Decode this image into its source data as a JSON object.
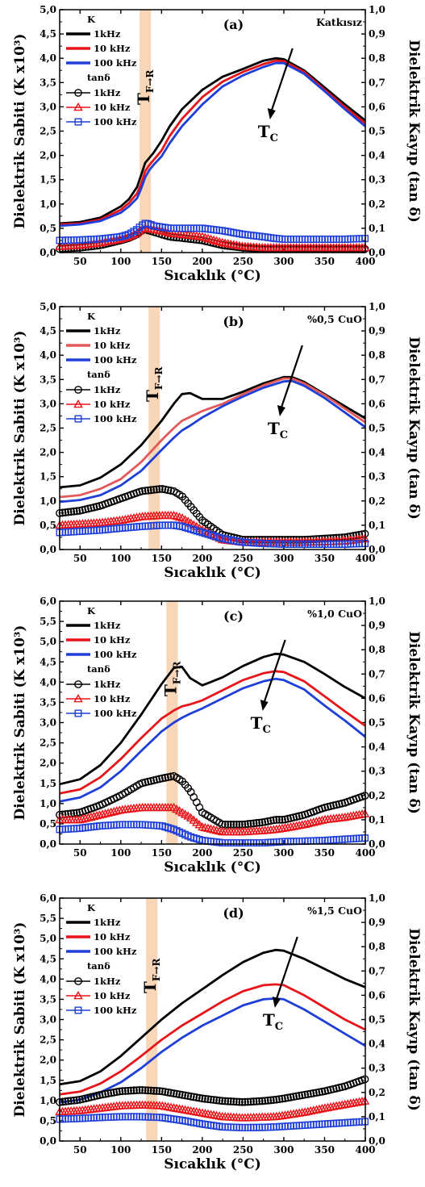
{
  "chart_data": [
    {
      "type": "line",
      "panel_label": "(a)",
      "note": "Katkısız",
      "xlabel": "Sıcaklık (°C)",
      "ylabel": "Dielektrik Sabiti (K x10³)",
      "y2label": "Dielektrik Kayıp (tan δ)",
      "xlim": [
        25,
        400
      ],
      "xticks": [
        50,
        100,
        150,
        200,
        250,
        300,
        350,
        400
      ],
      "ylim": [
        0,
        5.0
      ],
      "yticks": [
        0,
        0.5,
        1.0,
        1.5,
        2.0,
        2.5,
        3.0,
        3.5,
        4.0,
        4.5,
        5.0
      ],
      "ytick_labels": [
        "0,0",
        "0,5",
        "1,0",
        "1,5",
        "2,0",
        "2,5",
        "3,0",
        "3,5",
        "4,0",
        "4,5",
        "5,0"
      ],
      "y2lim": [
        0,
        1.0
      ],
      "y2ticks": [
        0,
        0.1,
        0.2,
        0.3,
        0.4,
        0.5,
        0.6,
        0.7,
        0.8,
        0.9,
        1.0
      ],
      "y2tick_labels": [
        "0,0",
        "0,1",
        "0,2",
        "0,3",
        "0,4",
        "0,5",
        "0,6",
        "0,7",
        "0,8",
        "0,9",
        "1,0"
      ],
      "band": [
        123,
        137
      ],
      "tfr_x": 130,
      "tc_x": 284,
      "legend_k_title": "K",
      "legend_tan_title": "tanδ",
      "x": [
        25,
        50,
        75,
        100,
        110,
        120,
        125,
        130,
        135,
        140,
        150,
        160,
        175,
        200,
        225,
        250,
        275,
        290,
        300,
        325,
        350,
        375,
        400
      ],
      "series": [
        {
          "name": "1kHz",
          "axis": "K",
          "color": "#000000",
          "values": [
            0.6,
            0.63,
            0.72,
            0.95,
            1.1,
            1.35,
            1.6,
            1.85,
            1.95,
            2.05,
            2.3,
            2.6,
            2.95,
            3.35,
            3.62,
            3.78,
            3.95,
            4.0,
            3.98,
            3.75,
            3.4,
            3.05,
            2.72
          ]
        },
        {
          "name": "10 kHz",
          "axis": "K",
          "color": "#e8141a",
          "values": [
            0.58,
            0.6,
            0.68,
            0.88,
            1.02,
            1.22,
            1.42,
            1.68,
            1.8,
            1.9,
            2.1,
            2.4,
            2.75,
            3.2,
            3.52,
            3.72,
            3.88,
            3.95,
            3.94,
            3.72,
            3.35,
            3.0,
            2.66
          ]
        },
        {
          "name": "100 kHz",
          "axis": "K",
          "color": "#1f3fd8",
          "values": [
            0.55,
            0.58,
            0.65,
            0.82,
            0.95,
            1.12,
            1.32,
            1.55,
            1.7,
            1.8,
            1.98,
            2.25,
            2.6,
            3.05,
            3.42,
            3.65,
            3.82,
            3.9,
            3.9,
            3.68,
            3.32,
            2.95,
            2.6
          ]
        },
        {
          "name": "1kHz",
          "axis": "tan",
          "color": "#000000",
          "marker": "circle",
          "values": [
            0.015,
            0.02,
            0.03,
            0.05,
            0.06,
            0.075,
            0.09,
            0.095,
            0.09,
            0.085,
            0.075,
            0.065,
            0.06,
            0.05,
            0.03,
            0.02,
            0.015,
            0.015,
            0.015,
            0.015,
            0.015,
            0.015,
            0.015
          ]
        },
        {
          "name": "10 kHz",
          "axis": "tan",
          "color": "#e8141a",
          "marker": "triangle",
          "values": [
            0.025,
            0.03,
            0.04,
            0.055,
            0.065,
            0.08,
            0.095,
            0.1,
            0.098,
            0.095,
            0.09,
            0.08,
            0.075,
            0.065,
            0.04,
            0.025,
            0.02,
            0.02,
            0.02,
            0.02,
            0.02,
            0.02,
            0.02
          ]
        },
        {
          "name": "100 kHz",
          "axis": "tan",
          "color": "#1f3fd8",
          "marker": "square",
          "values": [
            0.05,
            0.052,
            0.056,
            0.065,
            0.075,
            0.095,
            0.11,
            0.12,
            0.118,
            0.11,
            0.105,
            0.1,
            0.1,
            0.1,
            0.09,
            0.075,
            0.065,
            0.058,
            0.055,
            0.055,
            0.055,
            0.055,
            0.058
          ]
        }
      ]
    },
    {
      "type": "line",
      "panel_label": "(b)",
      "note": "%0,5 CuO",
      "xlabel": "Sıcaklık (°C)",
      "ylabel": "Dielektrik Sabiti (K x10³)",
      "y2label": "Dielektrik Kayıp (tan δ)",
      "xlim": [
        25,
        400
      ],
      "xticks": [
        50,
        100,
        150,
        200,
        250,
        300,
        350,
        400
      ],
      "ylim": [
        0,
        5.0
      ],
      "yticks": [
        0,
        0.5,
        1.0,
        1.5,
        2.0,
        2.5,
        3.0,
        3.5,
        4.0,
        4.5,
        5.0
      ],
      "ytick_labels": [
        "0,0",
        "0,5",
        "1,0",
        "1,5",
        "2,0",
        "2,5",
        "3,0",
        "3,5",
        "4,0",
        "4,5",
        "5,0"
      ],
      "y2lim": [
        0,
        1.0
      ],
      "y2ticks": [
        0,
        0.1,
        0.2,
        0.3,
        0.4,
        0.5,
        0.6,
        0.7,
        0.8,
        0.9,
        1.0
      ],
      "y2tick_labels": [
        "0,0",
        "0,1",
        "0,2",
        "0,3",
        "0,4",
        "0,5",
        "0,6",
        "0,7",
        "0,8",
        "0,9",
        "1,0"
      ],
      "band": [
        134,
        148
      ],
      "tfr_x": 141,
      "tc_x": 296,
      "legend_k_title": "K",
      "legend_tan_title": "tanδ",
      "x": [
        25,
        50,
        75,
        100,
        125,
        150,
        165,
        175,
        185,
        200,
        225,
        250,
        275,
        300,
        310,
        325,
        350,
        375,
        400
      ],
      "series": [
        {
          "name": "1kHz",
          "axis": "K",
          "color": "#000000",
          "values": [
            1.28,
            1.32,
            1.48,
            1.75,
            2.15,
            2.65,
            3.0,
            3.2,
            3.22,
            3.1,
            3.1,
            3.25,
            3.42,
            3.55,
            3.55,
            3.45,
            3.2,
            2.95,
            2.7
          ]
        },
        {
          "name": "10 kHz",
          "axis": "K",
          "color": "#e35858",
          "values": [
            1.08,
            1.12,
            1.25,
            1.45,
            1.8,
            2.25,
            2.5,
            2.65,
            2.73,
            2.85,
            3.0,
            3.2,
            3.38,
            3.52,
            3.52,
            3.42,
            3.18,
            2.9,
            2.62
          ]
        },
        {
          "name": "100 kHz",
          "axis": "K",
          "color": "#1f3fd8",
          "values": [
            0.98,
            1.02,
            1.12,
            1.32,
            1.62,
            2.05,
            2.3,
            2.45,
            2.55,
            2.72,
            2.95,
            3.15,
            3.33,
            3.46,
            3.47,
            3.37,
            3.12,
            2.82,
            2.52
          ]
        },
        {
          "name": "1kHz",
          "axis": "tan",
          "color": "#000000",
          "marker": "circle",
          "values": [
            0.15,
            0.16,
            0.18,
            0.21,
            0.24,
            0.25,
            0.24,
            0.22,
            0.18,
            0.12,
            0.06,
            0.04,
            0.04,
            0.04,
            0.04,
            0.04,
            0.045,
            0.05,
            0.065
          ]
        },
        {
          "name": "10 kHz",
          "axis": "tan",
          "color": "#e8141a",
          "marker": "triangle",
          "values": [
            0.1,
            0.105,
            0.11,
            0.12,
            0.135,
            0.14,
            0.14,
            0.13,
            0.11,
            0.08,
            0.04,
            0.03,
            0.03,
            0.03,
            0.03,
            0.03,
            0.032,
            0.035,
            0.045
          ]
        },
        {
          "name": "100 kHz",
          "axis": "tan",
          "color": "#1f3fd8",
          "marker": "square",
          "values": [
            0.07,
            0.075,
            0.08,
            0.088,
            0.095,
            0.1,
            0.1,
            0.095,
            0.085,
            0.07,
            0.045,
            0.03,
            0.025,
            0.022,
            0.022,
            0.022,
            0.022,
            0.022,
            0.025
          ]
        }
      ]
    },
    {
      "type": "line",
      "panel_label": "(c)",
      "note": "%1,0 CuO",
      "xlabel": "Sıcaklık (°C)",
      "ylabel": "Dielektrik Sabiti (K x10³)",
      "y2label": "Dielektrik Kayıp (tan δ)",
      "xlim": [
        25,
        400
      ],
      "xticks": [
        50,
        100,
        150,
        200,
        250,
        300,
        350,
        400
      ],
      "ylim": [
        0,
        6.0
      ],
      "yticks": [
        0,
        0.5,
        1.0,
        1.5,
        2.0,
        2.5,
        3.0,
        3.5,
        4.0,
        4.5,
        5.0,
        5.5,
        6.0
      ],
      "ytick_labels": [
        "0,0",
        "0,5",
        "1,0",
        "1,5",
        "2,0",
        "2,5",
        "3,0",
        "3,5",
        "4,0",
        "4,5",
        "5,0",
        "5,5",
        "6,0"
      ],
      "y2lim": [
        0,
        1.0
      ],
      "y2ticks": [
        0,
        0.1,
        0.2,
        0.3,
        0.4,
        0.5,
        0.6,
        0.7,
        0.8,
        0.9,
        1.0
      ],
      "y2tick_labels": [
        "0,0",
        "0,1",
        "0,2",
        "0,3",
        "0,4",
        "0,5",
        "0,6",
        "0,7",
        "0,8",
        "0,9",
        "1,0"
      ],
      "band": [
        156,
        170
      ],
      "tfr_x": 163,
      "tc_x": 275,
      "legend_k_title": "K",
      "legend_tan_title": "tanδ",
      "x": [
        25,
        50,
        75,
        100,
        125,
        150,
        165,
        175,
        185,
        200,
        225,
        250,
        275,
        290,
        300,
        325,
        350,
        375,
        400
      ],
      "series": [
        {
          "name": "1kHz",
          "axis": "K",
          "color": "#000000",
          "values": [
            1.48,
            1.6,
            1.95,
            2.5,
            3.2,
            3.95,
            4.35,
            4.38,
            4.1,
            3.92,
            4.12,
            4.4,
            4.62,
            4.7,
            4.68,
            4.5,
            4.2,
            3.88,
            3.6
          ]
        },
        {
          "name": "10 kHz",
          "axis": "K",
          "color": "#e8141a",
          "values": [
            1.25,
            1.35,
            1.65,
            2.1,
            2.62,
            3.1,
            3.3,
            3.4,
            3.45,
            3.55,
            3.8,
            4.05,
            4.22,
            4.27,
            4.25,
            4.02,
            3.65,
            3.28,
            2.92
          ]
        },
        {
          "name": "100 kHz",
          "axis": "K",
          "color": "#1f3fd8",
          "values": [
            1.05,
            1.15,
            1.4,
            1.8,
            2.3,
            2.78,
            3.0,
            3.12,
            3.22,
            3.35,
            3.6,
            3.85,
            4.02,
            4.08,
            4.05,
            3.82,
            3.42,
            3.05,
            2.65
          ]
        },
        {
          "name": "1kHz",
          "axis": "tan",
          "color": "#000000",
          "marker": "circle",
          "values": [
            0.12,
            0.13,
            0.16,
            0.2,
            0.25,
            0.27,
            0.28,
            0.26,
            0.22,
            0.13,
            0.08,
            0.08,
            0.09,
            0.1,
            0.1,
            0.12,
            0.15,
            0.17,
            0.2
          ]
        },
        {
          "name": "10 kHz",
          "axis": "tan",
          "color": "#e8141a",
          "marker": "triangle",
          "values": [
            0.1,
            0.1,
            0.12,
            0.14,
            0.15,
            0.15,
            0.15,
            0.13,
            0.11,
            0.07,
            0.05,
            0.05,
            0.055,
            0.06,
            0.065,
            0.08,
            0.1,
            0.11,
            0.125
          ]
        },
        {
          "name": "100 kHz",
          "axis": "tan",
          "color": "#1f3fd8",
          "marker": "square",
          "values": [
            0.06,
            0.065,
            0.075,
            0.08,
            0.08,
            0.075,
            0.06,
            0.045,
            0.03,
            0.015,
            0.005,
            0.005,
            0.005,
            0.008,
            0.01,
            0.012,
            0.015,
            0.02,
            0.025
          ]
        }
      ]
    },
    {
      "type": "line",
      "panel_label": "(d)",
      "note": "%1,5 CuO",
      "xlabel": "Sıcaklık (°C)",
      "ylabel": "Dielektrik Sabiti (K x10³)",
      "y2label": "Dielektrik Kayıp (tan δ)",
      "xlim": [
        25,
        400
      ],
      "xticks": [
        50,
        100,
        150,
        200,
        250,
        300,
        350,
        400
      ],
      "ylim": [
        0,
        6.0
      ],
      "yticks": [
        0,
        0.5,
        1.0,
        1.5,
        2.0,
        2.5,
        3.0,
        3.5,
        4.0,
        4.5,
        5.0,
        5.5,
        6.0
      ],
      "ytick_labels": [
        "0,0",
        "0,5",
        "1,0",
        "1,5",
        "2,0",
        "2,5",
        "3,0",
        "3,5",
        "4,0",
        "4,5",
        "5,0",
        "5,5",
        "6,0"
      ],
      "y2lim": [
        0,
        1.0
      ],
      "y2ticks": [
        0,
        0.1,
        0.2,
        0.3,
        0.4,
        0.5,
        0.6,
        0.7,
        0.8,
        0.9,
        1.0
      ],
      "y2tick_labels": [
        "0,0",
        "0,1",
        "0,2",
        "0,3",
        "0,4",
        "0,5",
        "0,6",
        "0,7",
        "0,8",
        "0,9",
        "1,0"
      ],
      "band": [
        131,
        145
      ],
      "tfr_x": 138,
      "tc_x": 290,
      "legend_k_title": "K",
      "legend_tan_title": "tanδ",
      "x": [
        25,
        50,
        75,
        100,
        125,
        150,
        175,
        200,
        225,
        250,
        275,
        290,
        300,
        325,
        350,
        375,
        400
      ],
      "series": [
        {
          "name": "1kHz",
          "axis": "K",
          "color": "#000000",
          "values": [
            1.4,
            1.48,
            1.72,
            2.1,
            2.55,
            3.0,
            3.4,
            3.75,
            4.1,
            4.42,
            4.65,
            4.72,
            4.7,
            4.5,
            4.25,
            4.0,
            3.8
          ]
        },
        {
          "name": "10 kHz",
          "axis": "K",
          "color": "#e8141a",
          "values": [
            1.15,
            1.22,
            1.42,
            1.72,
            2.1,
            2.5,
            2.85,
            3.15,
            3.45,
            3.7,
            3.85,
            3.87,
            3.85,
            3.6,
            3.3,
            3.0,
            2.75
          ]
        },
        {
          "name": "100 kHz",
          "axis": "K",
          "color": "#1f3fd8",
          "values": [
            0.95,
            1.02,
            1.2,
            1.45,
            1.8,
            2.2,
            2.55,
            2.85,
            3.1,
            3.35,
            3.5,
            3.52,
            3.5,
            3.25,
            2.95,
            2.65,
            2.35
          ]
        },
        {
          "name": "1kHz",
          "axis": "tan",
          "color": "#000000",
          "marker": "circle",
          "values": [
            0.16,
            0.17,
            0.19,
            0.205,
            0.21,
            0.205,
            0.19,
            0.175,
            0.165,
            0.16,
            0.165,
            0.17,
            0.175,
            0.19,
            0.205,
            0.225,
            0.255
          ]
        },
        {
          "name": "10 kHz",
          "axis": "tan",
          "color": "#e8141a",
          "marker": "triangle",
          "values": [
            0.12,
            0.125,
            0.135,
            0.145,
            0.148,
            0.145,
            0.13,
            0.115,
            0.1,
            0.095,
            0.098,
            0.1,
            0.105,
            0.118,
            0.135,
            0.15,
            0.165
          ]
        },
        {
          "name": "100 kHz",
          "axis": "tan",
          "color": "#1f3fd8",
          "marker": "square",
          "values": [
            0.09,
            0.093,
            0.097,
            0.1,
            0.1,
            0.097,
            0.085,
            0.07,
            0.058,
            0.055,
            0.056,
            0.058,
            0.06,
            0.065,
            0.07,
            0.075,
            0.08
          ]
        }
      ]
    }
  ]
}
